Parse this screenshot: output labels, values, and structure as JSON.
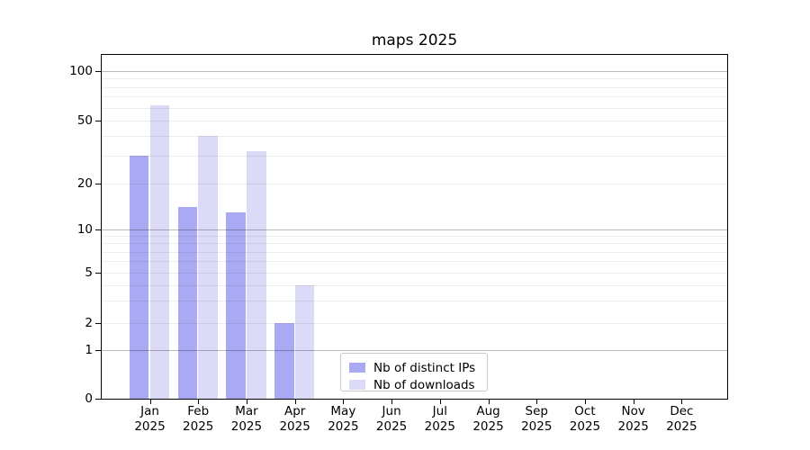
{
  "chart": {
    "title": "maps 2025"
  },
  "chart_data": {
    "type": "bar",
    "title": "maps 2025",
    "categories": [
      "Jan 2025",
      "Feb 2025",
      "Mar 2025",
      "Apr 2025",
      "May 2025",
      "Jun 2025",
      "Jul 2025",
      "Aug 2025",
      "Sep 2025",
      "Oct 2025",
      "Nov 2025",
      "Dec 2025"
    ],
    "x_tick_months": [
      "Jan",
      "Feb",
      "Mar",
      "Apr",
      "May",
      "Jun",
      "Jul",
      "Aug",
      "Sep",
      "Oct",
      "Nov",
      "Dec"
    ],
    "x_tick_year": "2025",
    "series": [
      {
        "name": "Nb of distinct IPs",
        "color": "#a9a9f4",
        "values": [
          30,
          14,
          13,
          2,
          0,
          0,
          0,
          0,
          0,
          0,
          0,
          0
        ]
      },
      {
        "name": "Nb of downloads",
        "color": "#dbdbf8",
        "values": [
          62,
          40,
          32,
          4,
          0,
          0,
          0,
          0,
          0,
          0,
          0,
          0
        ]
      }
    ],
    "xlabel": "",
    "ylabel": "",
    "y_ticks": [
      0,
      1,
      2,
      5,
      10,
      20,
      50,
      100
    ],
    "y_scale": "log-like (linear segment 0 to 1, logarithmic above)",
    "grid": {
      "orientation": "horizontal",
      "major_lines": [
        1,
        10,
        100
      ],
      "minor_lines": [
        2,
        3,
        4,
        5,
        6,
        7,
        8,
        9,
        20,
        30,
        40,
        50,
        60,
        70,
        80,
        90
      ]
    },
    "legend": {
      "position": "inside-bottom-center-left",
      "entries": [
        "Nb of distinct IPs",
        "Nb of downloads"
      ]
    },
    "background_color": "#ffffff",
    "text_color": "#000000"
  }
}
